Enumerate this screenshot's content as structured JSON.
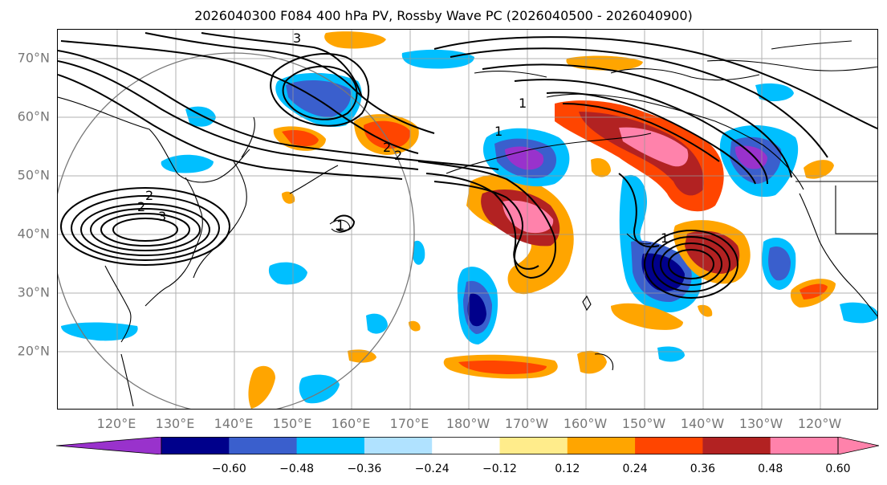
{
  "title": "2026040300 F084 400 hPa PV, Rossby Wave PC (2026040500 - 2026040900)",
  "lat_labels": [
    "70°N",
    "60°N",
    "50°N",
    "40°N",
    "30°N",
    "20°N"
  ],
  "lon_labels": [
    "120°E",
    "130°E",
    "140°E",
    "150°E",
    "160°E",
    "170°E",
    "180°W",
    "170°W",
    "160°W",
    "150°W",
    "140°W",
    "130°W",
    "120°W"
  ],
  "colorbar": {
    "ticks": [
      "−0.60",
      "−0.48",
      "−0.36",
      "−0.24",
      "−0.12",
      "0.12",
      "0.24",
      "0.36",
      "0.48",
      "0.60"
    ],
    "colors": [
      "#9932cc",
      "#00008b",
      "#3a5fcd",
      "#00bfff",
      "#b0e2ff",
      "#ffffff",
      "#ffec8b",
      "#ffa500",
      "#ff4500",
      "#b22222",
      "#ff82ab",
      "#ff82ab"
    ]
  },
  "contour_labels": [
    "2",
    "2",
    "3",
    "2",
    "2",
    "1",
    "1",
    "1",
    "3",
    "1"
  ],
  "colors": {
    "grid": "#999999",
    "coast": "#000000",
    "contour": "#000000",
    "axis_text": "#777777"
  }
}
